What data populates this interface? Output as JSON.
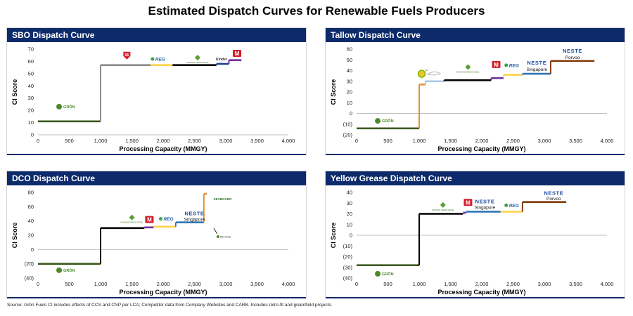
{
  "title": "Estimated Dispatch Curves for Renewable Fuels Producers",
  "source_note": "Source: Grön Fuels CI includes effects of CCS and CNP per LCA; Competitor data from Company Websites and CARB. Includes retro-fit and greenfield projects.",
  "chart_data": [
    {
      "type": "step",
      "title": "SBO Dispatch Curve",
      "xlabel": "Processing Capacity (MMGY)",
      "ylabel": "CI Score",
      "xlim": [
        0,
        4000
      ],
      "ylim": [
        0,
        70
      ],
      "xticks": [
        0,
        500,
        1000,
        1500,
        2000,
        2500,
        3000,
        3500,
        4000
      ],
      "xtick_labels": [
        "0",
        "500",
        "1,000",
        "1,500",
        "2,000",
        "2,500",
        "3,000",
        "3,500",
        "4,000"
      ],
      "yticks": [
        0,
        10,
        20,
        30,
        40,
        50,
        60,
        70
      ],
      "ytick_labels": [
        "0",
        "10",
        "20",
        "30",
        "40",
        "50",
        "60",
        "70"
      ],
      "segments": [
        {
          "x0": 0,
          "x1": 1000,
          "y": 11,
          "color": "#3d5a1e"
        },
        {
          "x0": 1000,
          "x1": 1800,
          "y": 57,
          "color": "#8c8c8c"
        },
        {
          "x0": 1800,
          "x1": 2150,
          "y": 57,
          "color": "#ffd24d"
        },
        {
          "x0": 2150,
          "x1": 2850,
          "y": 57,
          "color": "#000000"
        },
        {
          "x0": 2850,
          "x1": 3050,
          "y": 58,
          "color": "#1f3f8f"
        },
        {
          "x0": 3050,
          "x1": 3250,
          "y": 61,
          "color": "#7030a0"
        }
      ],
      "logos": [
        {
          "text": "GRŌN",
          "kind": "gron",
          "x": 450,
          "y": 23
        },
        {
          "text": "66",
          "kind": "p66",
          "x": 1420,
          "y": 65
        },
        {
          "text": "REG",
          "kind": "reg",
          "x": 1920,
          "y": 62
        },
        {
          "text": "DIAMOND GREEN DIESEL",
          "kind": "dgd",
          "x": 2550,
          "y": 62
        },
        {
          "text": "Kinder",
          "kind": "kinder",
          "x": 2930,
          "y": 62
        },
        {
          "text": "M",
          "kind": "mpc",
          "x": 3180,
          "y": 66
        }
      ]
    },
    {
      "type": "step",
      "title": "Tallow Dispatch Curve",
      "xlabel": "Processing Capacity (MMGY)",
      "ylabel": "CI Score",
      "xlim": [
        0,
        4000
      ],
      "ylim": [
        -20,
        60
      ],
      "xticks": [
        0,
        500,
        1000,
        1500,
        2000,
        2500,
        3000,
        3500,
        4000
      ],
      "xtick_labels": [
        "0",
        "500",
        "1,000",
        "1,500",
        "2,000",
        "2,500",
        "3,000",
        "3,500",
        "4,000"
      ],
      "yticks": [
        -20,
        -10,
        0,
        10,
        20,
        30,
        40,
        50,
        60
      ],
      "ytick_labels": [
        "(20)",
        "(10)",
        "0",
        "10",
        "20",
        "30",
        "40",
        "50",
        "60"
      ],
      "segments": [
        {
          "x0": 0,
          "x1": 1000,
          "y": -14,
          "color": "#3d5a1e"
        },
        {
          "x0": 1000,
          "x1": 1100,
          "y": 27,
          "color": "#e69138"
        },
        {
          "x0": 1100,
          "x1": 1400,
          "y": 30,
          "color": "#a9c9e8"
        },
        {
          "x0": 1400,
          "x1": 2150,
          "y": 31,
          "color": "#000000"
        },
        {
          "x0": 2150,
          "x1": 2350,
          "y": 33,
          "color": "#7030a0"
        },
        {
          "x0": 2350,
          "x1": 2650,
          "y": 36,
          "color": "#ffd24d"
        },
        {
          "x0": 2650,
          "x1": 3100,
          "y": 37,
          "color": "#2e75b6"
        },
        {
          "x0": 3100,
          "x1": 3800,
          "y": 49,
          "color": "#843c0c"
        }
      ],
      "logos": [
        {
          "text": "GRŌN",
          "kind": "gron",
          "x": 450,
          "y": -7
        },
        {
          "text": "bp",
          "kind": "bp",
          "x": 1040,
          "y": 37
        },
        {
          "text": "~",
          "kind": "swoosh",
          "x": 1250,
          "y": 37
        },
        {
          "text": "DIAMOND GREEN DIESEL",
          "kind": "dgd",
          "x": 1780,
          "y": 42
        },
        {
          "text": "M",
          "kind": "mpc",
          "x": 2230,
          "y": 45
        },
        {
          "text": "REG",
          "kind": "reg",
          "x": 2480,
          "y": 45
        },
        {
          "text": "NESTE",
          "kind": "neste",
          "x": 2880,
          "y": 47
        },
        {
          "text": "Singapore",
          "kind": "caption",
          "x": 2880,
          "y": 41
        },
        {
          "text": "NESTE",
          "kind": "neste",
          "x": 3450,
          "y": 58
        },
        {
          "text": "Porvoo",
          "kind": "caption",
          "x": 3450,
          "y": 52
        }
      ]
    },
    {
      "type": "step",
      "title": "DCO Dispatch Curve",
      "xlabel": "Processing Capacity (MMGY)",
      "ylabel": "CI Score",
      "xlim": [
        0,
        4000
      ],
      "ylim": [
        -40,
        80
      ],
      "xticks": [
        0,
        500,
        1000,
        1500,
        2000,
        2500,
        3000,
        3500,
        4000
      ],
      "xtick_labels": [
        "0",
        "500",
        "1,000",
        "1,500",
        "2,000",
        "2,500",
        "3,000",
        "3,500",
        "4,000"
      ],
      "yticks": [
        -40,
        -20,
        0,
        20,
        40,
        60,
        80
      ],
      "ytick_labels": [
        "(40)",
        "(20)",
        "0",
        "20",
        "40",
        "60",
        "80"
      ],
      "segments": [
        {
          "x0": 0,
          "x1": 1000,
          "y": -20,
          "color": "#3d5a1e"
        },
        {
          "x0": 1000,
          "x1": 1700,
          "y": 30,
          "color": "#000000"
        },
        {
          "x0": 1700,
          "x1": 1850,
          "y": 31,
          "color": "#7030a0"
        },
        {
          "x0": 1850,
          "x1": 2200,
          "y": 32,
          "color": "#ffd24d"
        },
        {
          "x0": 2200,
          "x1": 2650,
          "y": 38,
          "color": "#2e75b6"
        },
        {
          "x0": 2650,
          "x1": 2700,
          "y": 78,
          "color": "#e69138"
        }
      ],
      "logos": [
        {
          "text": "GRŌN",
          "kind": "gron",
          "x": 450,
          "y": -29
        },
        {
          "text": "DIAMOND GREEN DIESEL",
          "kind": "dgd",
          "x": 1500,
          "y": 43
        },
        {
          "text": "M",
          "kind": "mpc",
          "x": 1780,
          "y": 41
        },
        {
          "text": "REG",
          "kind": "reg",
          "x": 2050,
          "y": 43
        },
        {
          "text": "NESTE",
          "kind": "neste",
          "x": 2500,
          "y": 50
        },
        {
          "text": "Singapore",
          "kind": "caption",
          "x": 2500,
          "y": 42
        },
        {
          "text": "SEABOARD",
          "kind": "seaboard",
          "x": 2950,
          "y": 71
        },
        {
          "text": "Red Rock",
          "kind": "redrock",
          "x": 2920,
          "y": 18
        }
      ]
    },
    {
      "type": "step",
      "title": "Yellow Grease Dispatch Curve",
      "xlabel": "Processing Capacity (MMGY)",
      "ylabel": "CI Score",
      "xlim": [
        0,
        4000
      ],
      "ylim": [
        -40,
        40
      ],
      "xticks": [
        0,
        500,
        1000,
        1500,
        2000,
        2500,
        3000,
        3500,
        4000
      ],
      "xtick_labels": [
        "0",
        "500",
        "1,000",
        "1,500",
        "2,000",
        "2,500",
        "3,000",
        "3,500",
        "4,000"
      ],
      "yticks": [
        -40,
        -30,
        -20,
        -10,
        0,
        10,
        20,
        30,
        40
      ],
      "ytick_labels": [
        "(40)",
        "(30)",
        "(20)",
        "(10)",
        "0",
        "10",
        "20",
        "30",
        "40"
      ],
      "segments": [
        {
          "x0": 0,
          "x1": 1000,
          "y": -28,
          "color": "#3d5a1e"
        },
        {
          "x0": 1000,
          "x1": 1700,
          "y": 20,
          "color": "#000000"
        },
        {
          "x0": 1700,
          "x1": 1750,
          "y": 21,
          "color": "#7030a0"
        },
        {
          "x0": 1750,
          "x1": 2300,
          "y": 22,
          "color": "#2e75b6"
        },
        {
          "x0": 2300,
          "x1": 2650,
          "y": 22,
          "color": "#ffd24d"
        },
        {
          "x0": 2650,
          "x1": 3350,
          "y": 31,
          "color": "#843c0c"
        }
      ],
      "logos": [
        {
          "text": "GRŌN",
          "kind": "gron",
          "x": 450,
          "y": -36
        },
        {
          "text": "DIAMOND GREEN DIESEL",
          "kind": "dgd",
          "x": 1380,
          "y": 27
        },
        {
          "text": "M",
          "kind": "mpc",
          "x": 1780,
          "y": 30
        },
        {
          "text": "NESTE",
          "kind": "neste",
          "x": 2050,
          "y": 31
        },
        {
          "text": "Singapore",
          "kind": "caption",
          "x": 2050,
          "y": 26
        },
        {
          "text": "REG",
          "kind": "reg",
          "x": 2480,
          "y": 28
        },
        {
          "text": "NESTE",
          "kind": "neste",
          "x": 3150,
          "y": 39
        },
        {
          "text": "Porvoo",
          "kind": "caption",
          "x": 3150,
          "y": 34
        }
      ]
    }
  ]
}
